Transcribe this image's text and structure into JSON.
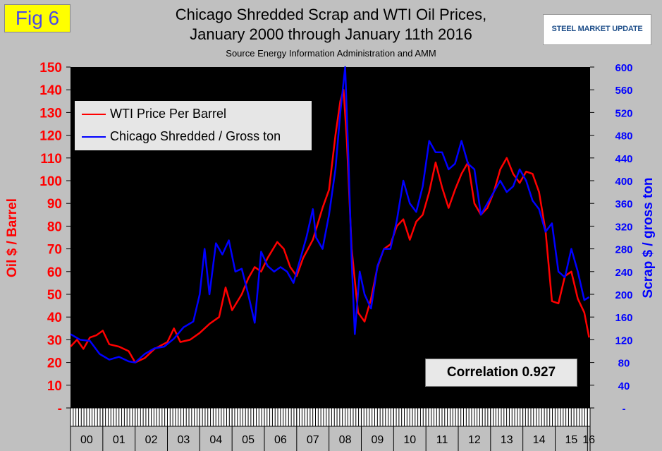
{
  "fig_label": "Fig 6",
  "title_line1": "Chicago Shredded Scrap and WTI Oil Prices,",
  "title_line2": "January 2000 through January 11th 2016",
  "source": "Source Energy Information Administration and AMM",
  "logo_text": "STEEL MARKET UPDATE",
  "correlation_label": "Correlation 0.927",
  "colors": {
    "oil": "#ff0000",
    "scrap": "#0000ff",
    "plot_bg": "#000000",
    "page_bg": "#c0c0c0"
  },
  "chart_data": {
    "type": "line",
    "ylabel_left": "Oil $ / Barrel",
    "ylabel_right": "Scrap $ / gross ton",
    "x_categories": [
      "00",
      "01",
      "02",
      "03",
      "04",
      "05",
      "06",
      "07",
      "08",
      "09",
      "10",
      "11",
      "12",
      "13",
      "14",
      "15",
      "16"
    ],
    "y_left_ticks": [
      "-",
      "10",
      "20",
      "30",
      "40",
      "50",
      "60",
      "70",
      "80",
      "90",
      "100",
      "110",
      "120",
      "130",
      "140",
      "150"
    ],
    "y_right_ticks": [
      "-",
      "40",
      "80",
      "120",
      "160",
      "200",
      "240",
      "280",
      "320",
      "360",
      "400",
      "440",
      "480",
      "520",
      "560",
      "600"
    ],
    "ylim_left": [
      0,
      150
    ],
    "ylim_right": [
      0,
      600
    ],
    "xlim": [
      0,
      16.08
    ],
    "legend_position": "top-left",
    "grid": false,
    "series": [
      {
        "name": "WTI Price Per Barrel",
        "axis": "left",
        "color": "#ff0000",
        "points": [
          [
            0,
            27
          ],
          [
            0.2,
            30
          ],
          [
            0.4,
            26
          ],
          [
            0.6,
            31
          ],
          [
            0.8,
            32
          ],
          [
            1.0,
            34
          ],
          [
            1.2,
            28
          ],
          [
            1.5,
            27
          ],
          [
            1.8,
            25
          ],
          [
            2.0,
            20
          ],
          [
            2.3,
            22
          ],
          [
            2.6,
            26
          ],
          [
            3.0,
            29
          ],
          [
            3.2,
            35
          ],
          [
            3.4,
            29
          ],
          [
            3.7,
            30
          ],
          [
            4.0,
            33
          ],
          [
            4.3,
            37
          ],
          [
            4.6,
            40
          ],
          [
            4.8,
            53
          ],
          [
            5.0,
            43
          ],
          [
            5.3,
            50
          ],
          [
            5.5,
            57
          ],
          [
            5.7,
            62
          ],
          [
            5.9,
            60
          ],
          [
            6.1,
            66
          ],
          [
            6.4,
            73
          ],
          [
            6.6,
            70
          ],
          [
            6.8,
            62
          ],
          [
            7.0,
            58
          ],
          [
            7.2,
            66
          ],
          [
            7.5,
            74
          ],
          [
            7.8,
            88
          ],
          [
            8.0,
            96
          ],
          [
            8.2,
            120
          ],
          [
            8.35,
            135
          ],
          [
            8.45,
            140
          ],
          [
            8.55,
            118
          ],
          [
            8.7,
            70
          ],
          [
            8.9,
            42
          ],
          [
            9.1,
            38
          ],
          [
            9.3,
            48
          ],
          [
            9.5,
            62
          ],
          [
            9.7,
            70
          ],
          [
            9.9,
            72
          ],
          [
            10.1,
            80
          ],
          [
            10.3,
            83
          ],
          [
            10.5,
            74
          ],
          [
            10.7,
            82
          ],
          [
            10.9,
            85
          ],
          [
            11.1,
            95
          ],
          [
            11.3,
            108
          ],
          [
            11.5,
            97
          ],
          [
            11.7,
            88
          ],
          [
            11.9,
            96
          ],
          [
            12.1,
            103
          ],
          [
            12.3,
            108
          ],
          [
            12.5,
            90
          ],
          [
            12.7,
            85
          ],
          [
            12.9,
            88
          ],
          [
            13.1,
            95
          ],
          [
            13.3,
            105
          ],
          [
            13.5,
            110
          ],
          [
            13.7,
            103
          ],
          [
            13.9,
            99
          ],
          [
            14.1,
            104
          ],
          [
            14.3,
            103
          ],
          [
            14.5,
            95
          ],
          [
            14.7,
            78
          ],
          [
            14.9,
            47
          ],
          [
            15.1,
            46
          ],
          [
            15.3,
            58
          ],
          [
            15.5,
            60
          ],
          [
            15.7,
            48
          ],
          [
            15.9,
            42
          ],
          [
            16.05,
            31
          ]
        ]
      },
      {
        "name": "Chicago Shredded / Gross ton",
        "axis": "right",
        "color": "#0000ff",
        "points": [
          [
            0,
            130
          ],
          [
            0.3,
            120
          ],
          [
            0.6,
            118
          ],
          [
            0.9,
            95
          ],
          [
            1.2,
            85
          ],
          [
            1.5,
            90
          ],
          [
            1.8,
            82
          ],
          [
            2.0,
            80
          ],
          [
            2.3,
            95
          ],
          [
            2.6,
            105
          ],
          [
            2.9,
            108
          ],
          [
            3.2,
            122
          ],
          [
            3.5,
            142
          ],
          [
            3.8,
            152
          ],
          [
            4.0,
            200
          ],
          [
            4.15,
            280
          ],
          [
            4.3,
            200
          ],
          [
            4.5,
            290
          ],
          [
            4.7,
            270
          ],
          [
            4.9,
            295
          ],
          [
            5.1,
            240
          ],
          [
            5.3,
            245
          ],
          [
            5.5,
            200
          ],
          [
            5.7,
            150
          ],
          [
            5.9,
            275
          ],
          [
            6.1,
            250
          ],
          [
            6.3,
            240
          ],
          [
            6.5,
            248
          ],
          [
            6.7,
            240
          ],
          [
            6.9,
            220
          ],
          [
            7.1,
            260
          ],
          [
            7.3,
            300
          ],
          [
            7.5,
            350
          ],
          [
            7.6,
            300
          ],
          [
            7.8,
            280
          ],
          [
            8.0,
            340
          ],
          [
            8.2,
            420
          ],
          [
            8.35,
            520
          ],
          [
            8.5,
            600
          ],
          [
            8.6,
            440
          ],
          [
            8.7,
            260
          ],
          [
            8.8,
            130
          ],
          [
            8.95,
            240
          ],
          [
            9.1,
            200
          ],
          [
            9.3,
            175
          ],
          [
            9.5,
            250
          ],
          [
            9.7,
            280
          ],
          [
            9.9,
            280
          ],
          [
            10.1,
            330
          ],
          [
            10.3,
            400
          ],
          [
            10.5,
            360
          ],
          [
            10.7,
            345
          ],
          [
            10.9,
            390
          ],
          [
            11.1,
            470
          ],
          [
            11.3,
            450
          ],
          [
            11.5,
            450
          ],
          [
            11.7,
            420
          ],
          [
            11.9,
            430
          ],
          [
            12.1,
            470
          ],
          [
            12.3,
            430
          ],
          [
            12.5,
            420
          ],
          [
            12.7,
            340
          ],
          [
            12.9,
            360
          ],
          [
            13.1,
            380
          ],
          [
            13.3,
            400
          ],
          [
            13.5,
            380
          ],
          [
            13.7,
            390
          ],
          [
            13.9,
            420
          ],
          [
            14.1,
            400
          ],
          [
            14.3,
            365
          ],
          [
            14.5,
            350
          ],
          [
            14.7,
            310
          ],
          [
            14.9,
            325
          ],
          [
            15.1,
            240
          ],
          [
            15.3,
            230
          ],
          [
            15.5,
            280
          ],
          [
            15.7,
            240
          ],
          [
            15.9,
            190
          ],
          [
            16.05,
            195
          ]
        ]
      }
    ]
  }
}
